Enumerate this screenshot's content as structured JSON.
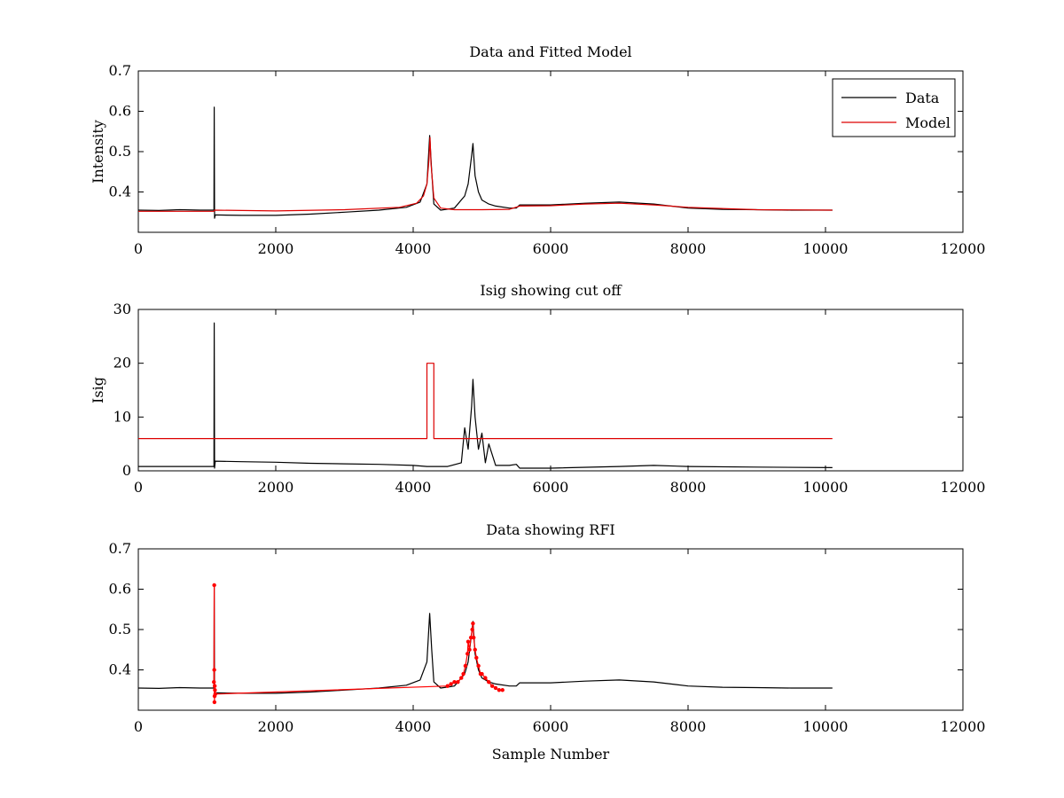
{
  "colors": {
    "data": "#000000",
    "model": "#dd0000",
    "rfi": "#ff0000"
  },
  "chart_data": [
    {
      "type": "line",
      "title": "Data and Fitted Model",
      "xlabel": "",
      "ylabel": "Intensity",
      "xlim": [
        0,
        12000
      ],
      "ylim": [
        0.3,
        0.7
      ],
      "xticks": [
        0,
        2000,
        4000,
        6000,
        8000,
        10000,
        12000
      ],
      "yticks": [
        0.4,
        0.5,
        0.6,
        0.7
      ],
      "grid": false,
      "legend": {
        "position": "top-right",
        "entries": [
          "Data",
          "Model"
        ]
      },
      "series": [
        {
          "name": "Data",
          "x": [
            0,
            300,
            600,
            900,
            1100,
            1105,
            1110,
            1120,
            1500,
            2000,
            2500,
            3000,
            3500,
            3900,
            4100,
            4200,
            4240,
            4270,
            4300,
            4400,
            4600,
            4750,
            4800,
            4850,
            4870,
            4900,
            4950,
            5000,
            5100,
            5200,
            5400,
            5500,
            5550,
            6000,
            6500,
            7000,
            7500,
            8000,
            8500,
            9000,
            9500,
            10100
          ],
          "y": [
            0.355,
            0.354,
            0.356,
            0.355,
            0.355,
            0.61,
            0.335,
            0.343,
            0.342,
            0.342,
            0.345,
            0.35,
            0.355,
            0.362,
            0.375,
            0.42,
            0.54,
            0.45,
            0.37,
            0.355,
            0.36,
            0.39,
            0.42,
            0.49,
            0.52,
            0.44,
            0.4,
            0.38,
            0.37,
            0.365,
            0.36,
            0.36,
            0.368,
            0.368,
            0.372,
            0.375,
            0.37,
            0.36,
            0.357,
            0.356,
            0.355,
            0.355
          ]
        },
        {
          "name": "Model",
          "x": [
            0,
            1100,
            1110,
            2000,
            3000,
            3800,
            4050,
            4150,
            4200,
            4230,
            4245,
            4260,
            4300,
            4400,
            4600,
            5000,
            5400,
            5550,
            6000,
            6500,
            7000,
            7500,
            8000,
            9000,
            10100
          ],
          "y": [
            0.352,
            0.352,
            0.355,
            0.353,
            0.356,
            0.362,
            0.372,
            0.39,
            0.42,
            0.48,
            0.535,
            0.47,
            0.385,
            0.36,
            0.356,
            0.356,
            0.357,
            0.365,
            0.366,
            0.37,
            0.372,
            0.368,
            0.362,
            0.356,
            0.355
          ]
        }
      ]
    },
    {
      "type": "line",
      "title": "Isig showing cut off",
      "xlabel": "",
      "ylabel": "Isig",
      "xlim": [
        0,
        12000
      ],
      "ylim": [
        0,
        30
      ],
      "xticks": [
        0,
        2000,
        4000,
        6000,
        8000,
        10000,
        12000
      ],
      "yticks": [
        0,
        10,
        20,
        30
      ],
      "grid": false,
      "series": [
        {
          "x": [
            0,
            500,
            1000,
            1100,
            1105,
            1110,
            1120,
            1500,
            2000,
            2500,
            3000,
            3500,
            4000,
            4200,
            4500,
            4700,
            4750,
            4800,
            4850,
            4870,
            4900,
            4950,
            5000,
            5050,
            5100,
            5200,
            5400,
            5500,
            5550,
            6000,
            7000,
            7500,
            8000,
            9000,
            10100
          ],
          "y": [
            0.8,
            0.8,
            0.8,
            0.8,
            27.5,
            0.5,
            1.8,
            1.7,
            1.6,
            1.4,
            1.3,
            1.2,
            1.0,
            0.8,
            0.8,
            1.5,
            8.0,
            4.0,
            12.0,
            17.0,
            10.0,
            4.0,
            7.0,
            1.5,
            5.0,
            1.0,
            1.0,
            1.2,
            0.5,
            0.5,
            0.8,
            1.0,
            0.8,
            0.7,
            0.6
          ]
        },
        {
          "x": [
            0,
            4200,
            4200,
            4300,
            4300,
            10100
          ],
          "y": [
            6,
            6,
            20,
            20,
            6,
            6
          ]
        }
      ]
    },
    {
      "type": "line",
      "title": "Data showing RFI",
      "xlabel": "Sample Number",
      "ylabel": "",
      "xlim": [
        0,
        12000
      ],
      "ylim": [
        0.3,
        0.7
      ],
      "xticks": [
        0,
        2000,
        4000,
        6000,
        8000,
        10000,
        12000
      ],
      "yticks": [
        0.4,
        0.5,
        0.6,
        0.7
      ],
      "grid": false,
      "series": [
        {
          "x": [
            0,
            300,
            600,
            900,
            1100,
            1105,
            1110,
            1120,
            1500,
            2000,
            2500,
            3000,
            3500,
            3900,
            4100,
            4200,
            4240,
            4270,
            4300,
            4400,
            4600,
            4750,
            4800,
            4850,
            4870,
            4900,
            4950,
            5000,
            5100,
            5200,
            5400,
            5500,
            5550,
            6000,
            6500,
            7000,
            7500,
            8000,
            8500,
            9000,
            9500,
            10100
          ],
          "y": [
            0.355,
            0.354,
            0.356,
            0.355,
            0.355,
            0.61,
            0.335,
            0.343,
            0.342,
            0.342,
            0.345,
            0.35,
            0.355,
            0.362,
            0.375,
            0.42,
            0.54,
            0.45,
            0.37,
            0.355,
            0.36,
            0.39,
            0.42,
            0.49,
            0.52,
            0.44,
            0.4,
            0.38,
            0.37,
            0.365,
            0.36,
            0.36,
            0.368,
            0.368,
            0.372,
            0.375,
            0.37,
            0.36,
            0.357,
            0.356,
            0.355,
            0.355
          ]
        },
        {
          "x": [
            1100,
            1105,
            1105,
            1108,
            1110,
            1112,
            1115,
            1120,
            4500,
            4550,
            4600,
            4650,
            4700,
            4730,
            4760,
            4790,
            4800,
            4820,
            4840,
            4860,
            4870,
            4880,
            4900,
            4920,
            4950,
            4980,
            5000,
            5050,
            5100,
            5150,
            5200,
            5250,
            5300
          ],
          "y": [
            0.37,
            0.61,
            0.4,
            0.32,
            0.335,
            0.36,
            0.35,
            0.34,
            0.36,
            0.365,
            0.37,
            0.37,
            0.38,
            0.39,
            0.41,
            0.44,
            0.47,
            0.45,
            0.48,
            0.5,
            0.515,
            0.48,
            0.45,
            0.43,
            0.41,
            0.39,
            0.39,
            0.38,
            0.37,
            0.36,
            0.355,
            0.35,
            0.35
          ]
        }
      ]
    }
  ]
}
